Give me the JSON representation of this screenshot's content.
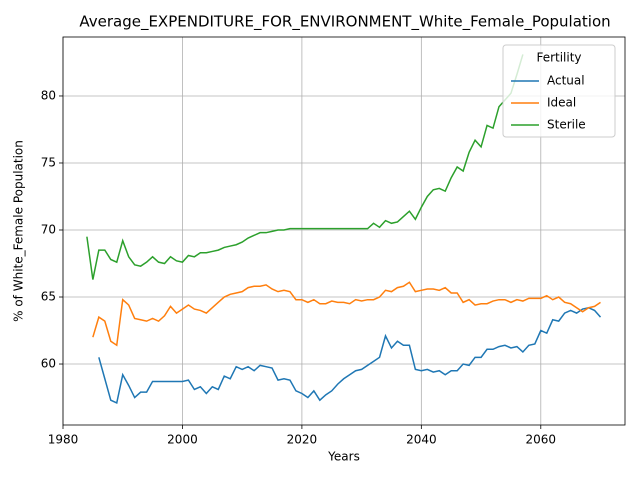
{
  "chart_data": {
    "type": "line",
    "title": "Average_EXPENDITURE_FOR_ENVIRONMENT_White_Female_Population",
    "x_label": "Years",
    "y_label": "% of White_Female Population",
    "legend_title": "Fertility",
    "legend": "upper right",
    "grid": true,
    "xlim": [
      1980,
      2074.1
    ],
    "ylim": [
      55.45,
      84.4
    ],
    "xticks": [
      1980,
      2000,
      2020,
      2040,
      2060
    ],
    "yticks": [
      60,
      65,
      70,
      75,
      80
    ],
    "x": [
      1984,
      1985,
      1986,
      1987,
      1988,
      1989,
      1990,
      1991,
      1992,
      1993,
      1994,
      1995,
      1996,
      1997,
      1998,
      1999,
      2000,
      2001,
      2002,
      2003,
      2004,
      2005,
      2006,
      2007,
      2008,
      2009,
      2010,
      2011,
      2012,
      2013,
      2014,
      2015,
      2016,
      2017,
      2018,
      2019,
      2020,
      2021,
      2022,
      2023,
      2024,
      2025,
      2026,
      2027,
      2028,
      2029,
      2030,
      2031,
      2032,
      2033,
      2034,
      2035,
      2036,
      2037,
      2038,
      2039,
      2040,
      2041,
      2042,
      2043,
      2044,
      2045,
      2046,
      2047,
      2048,
      2049,
      2050,
      2051,
      2052,
      2053,
      2054,
      2055,
      2056,
      2057,
      2058,
      2059,
      2060,
      2061,
      2062,
      2063,
      2064,
      2065,
      2066,
      2067,
      2068,
      2069,
      2070
    ],
    "series": [
      {
        "name": "Actual",
        "color": "#1f77b4",
        "values": [
          null,
          null,
          60.5,
          58.9,
          57.3,
          57.1,
          59.2,
          58.4,
          57.5,
          57.9,
          57.9,
          58.7,
          58.7,
          58.7,
          58.7,
          58.7,
          58.7,
          58.8,
          58.1,
          58.3,
          57.8,
          58.3,
          58.1,
          59.1,
          58.9,
          59.8,
          59.6,
          59.8,
          59.5,
          59.9,
          59.8,
          59.7,
          58.8,
          58.9,
          58.8,
          58.0,
          57.8,
          57.5,
          58.0,
          57.3,
          57.7,
          58.0,
          58.5,
          58.9,
          59.2,
          59.5,
          59.6,
          59.9,
          60.2,
          60.5,
          62.1,
          61.2,
          61.7,
          61.4,
          61.4,
          59.6,
          59.5,
          59.6,
          59.4,
          59.5,
          59.2,
          59.5,
          59.5,
          60.0,
          59.9,
          60.5,
          60.5,
          61.1,
          61.1,
          61.3,
          61.4,
          61.2,
          61.3,
          60.9,
          61.4,
          61.5,
          62.5,
          62.3,
          63.3,
          63.2,
          63.8,
          64.0,
          63.8,
          64.1,
          64.2,
          64.0,
          63.5
        ]
      },
      {
        "name": "Ideal",
        "color": "#ff7f0e",
        "values": [
          null,
          62.0,
          63.5,
          63.2,
          61.7,
          61.4,
          64.8,
          64.4,
          63.4,
          63.3,
          63.2,
          63.4,
          63.2,
          63.6,
          64.3,
          63.8,
          64.1,
          64.4,
          64.1,
          64.0,
          63.8,
          64.2,
          64.6,
          65.0,
          65.2,
          65.3,
          65.4,
          65.7,
          65.8,
          65.8,
          65.9,
          65.6,
          65.4,
          65.5,
          65.4,
          64.8,
          64.8,
          64.6,
          64.8,
          64.5,
          64.5,
          64.7,
          64.6,
          64.6,
          64.5,
          64.8,
          64.7,
          64.8,
          64.8,
          65.0,
          65.5,
          65.4,
          65.7,
          65.8,
          66.1,
          65.4,
          65.5,
          65.6,
          65.6,
          65.5,
          65.7,
          65.3,
          65.3,
          64.6,
          64.8,
          64.4,
          64.5,
          64.5,
          64.7,
          64.8,
          64.8,
          64.6,
          64.8,
          64.7,
          64.9,
          64.9,
          64.9,
          65.1,
          64.8,
          65.0,
          64.6,
          64.5,
          64.2,
          63.9,
          64.2,
          64.3,
          64.6
        ]
      },
      {
        "name": "Sterile",
        "color": "#2ca02c",
        "values": [
          69.5,
          66.3,
          68.5,
          68.5,
          67.8,
          67.6,
          69.2,
          68.0,
          67.4,
          67.3,
          67.6,
          68.0,
          67.6,
          67.5,
          68.0,
          67.7,
          67.6,
          68.1,
          68.0,
          68.3,
          68.3,
          68.4,
          68.5,
          68.7,
          68.8,
          68.9,
          69.1,
          69.4,
          69.6,
          69.8,
          69.8,
          69.9,
          70.0,
          70.0,
          70.1,
          70.1,
          70.1,
          70.1,
          70.1,
          70.1,
          70.1,
          70.1,
          70.1,
          70.1,
          70.1,
          70.1,
          70.1,
          70.1,
          70.5,
          70.2,
          70.7,
          70.5,
          70.6,
          71.0,
          71.4,
          70.8,
          71.7,
          72.5,
          73.0,
          73.1,
          72.9,
          73.9,
          74.7,
          74.4,
          75.8,
          76.7,
          76.2,
          77.8,
          77.6,
          79.2,
          79.7,
          80.2,
          81.6,
          83.1,
          null,
          null,
          null,
          null,
          null,
          null,
          null,
          null,
          null,
          null,
          null,
          null,
          null
        ]
      }
    ]
  }
}
